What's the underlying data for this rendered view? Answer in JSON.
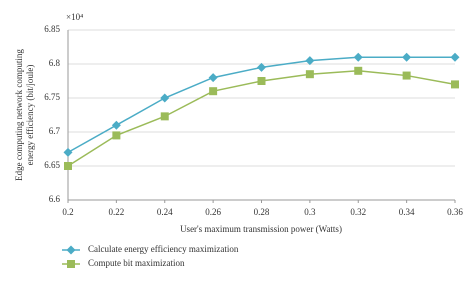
{
  "chart_data": {
    "type": "line",
    "y_multiplier": "×10⁴",
    "y_label": [
      "Edge computing network computing",
      "energy efficiency (bit/joule)"
    ],
    "x_label": "User's maximum transmission power (Watts)",
    "x": [
      0.2,
      0.22,
      0.24,
      0.26,
      0.28,
      0.3,
      0.32,
      0.34,
      0.36
    ],
    "series": [
      {
        "name": "Calculate energy efficiency maximization",
        "color": "#4bacc6",
        "marker": "diamond",
        "values": [
          6.67,
          6.71,
          6.75,
          6.78,
          6.795,
          6.805,
          6.81,
          6.81,
          6.81
        ]
      },
      {
        "name": "Compute bit maximization",
        "color": "#9bbb59",
        "marker": "square",
        "values": [
          6.65,
          6.695,
          6.723,
          6.76,
          6.775,
          6.785,
          6.79,
          6.783,
          6.77
        ]
      }
    ],
    "xlim": [
      0.2,
      0.36
    ],
    "xticks": [
      0.2,
      0.22,
      0.24,
      0.26,
      0.28,
      0.3,
      0.32,
      0.34,
      0.36
    ],
    "ylim": [
      6.6,
      6.85
    ],
    "yticks": [
      6.6,
      6.65,
      6.7,
      6.75,
      6.8,
      6.85
    ],
    "grid": true
  }
}
